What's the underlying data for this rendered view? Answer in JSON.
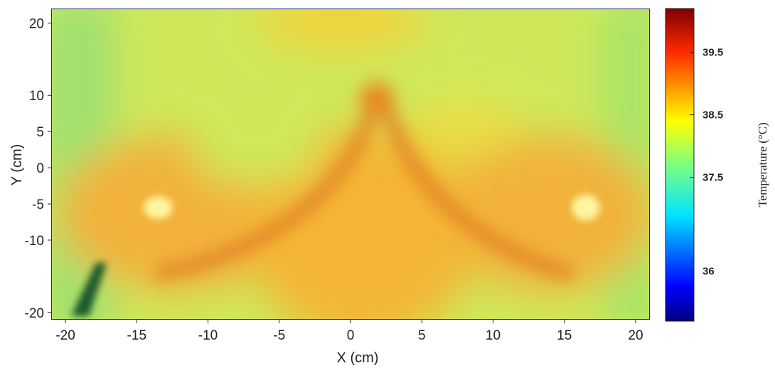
{
  "chart_data": {
    "type": "heatmap",
    "title": "",
    "xlabel": "X (cm)",
    "ylabel": "Y (cm)",
    "xlim": [
      -21,
      21
    ],
    "ylim": [
      -21,
      22
    ],
    "x_ticks": [
      -20,
      -15,
      -10,
      -5,
      0,
      5,
      10,
      15,
      20
    ],
    "y_ticks": [
      20,
      10,
      5,
      0,
      -5,
      -10,
      -20
    ],
    "colorbar": {
      "label": "Temperature (°C)",
      "range": [
        35.2,
        40.2
      ],
      "ticks": [
        36,
        37.5,
        38.5,
        39.5
      ],
      "colormap": "jet"
    },
    "features": [
      {
        "name": "left-hotspot",
        "x": -13.5,
        "y": -5.5,
        "value": 39.3
      },
      {
        "name": "right-hotspot",
        "x": 16.5,
        "y": -5.5,
        "value": 39.3
      }
    ],
    "background_value": 37.8
  }
}
